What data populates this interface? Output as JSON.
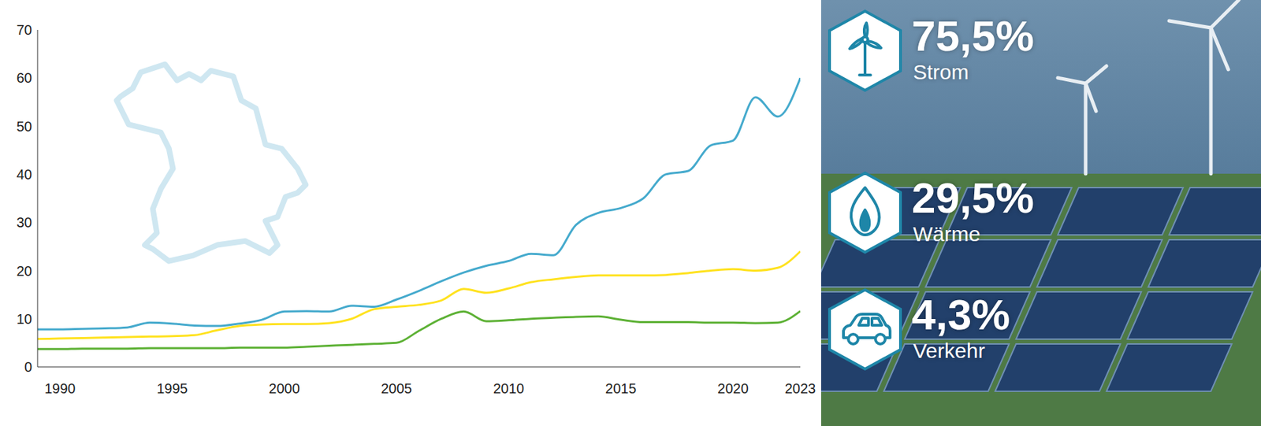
{
  "chart_data": {
    "type": "line",
    "x": [
      1989,
      1990,
      1991,
      1992,
      1993,
      1994,
      1995,
      1996,
      1997,
      1998,
      1999,
      2000,
      2001,
      2002,
      2003,
      2004,
      2005,
      2006,
      2007,
      2008,
      2009,
      2010,
      2011,
      2012,
      2013,
      2014,
      2015,
      2016,
      2017,
      2018,
      2019,
      2020,
      2021,
      2022,
      2023
    ],
    "series": [
      {
        "name": "Strom",
        "color": "#45aacd",
        "values": [
          7.8,
          7.8,
          7.9,
          8.0,
          8.2,
          9.2,
          9.0,
          8.6,
          8.5,
          9.0,
          9.8,
          11.5,
          11.6,
          11.5,
          12.7,
          12.5,
          14.0,
          15.8,
          17.8,
          19.6,
          21.0,
          22.0,
          23.5,
          23.2,
          29.5,
          32.0,
          33.0,
          35.0,
          40.0,
          40.7,
          46.0,
          47.0,
          56.0,
          52.0,
          60.0
        ]
      },
      {
        "name": "Wärme",
        "color": "#ffe21f",
        "values": [
          5.8,
          5.9,
          6.0,
          6.1,
          6.2,
          6.3,
          6.4,
          6.6,
          7.6,
          8.5,
          8.8,
          8.9,
          8.9,
          9.1,
          10.0,
          12.0,
          12.5,
          12.9,
          13.8,
          16.2,
          15.4,
          16.3,
          17.6,
          18.2,
          18.7,
          19.0,
          19.0,
          19.0,
          19.1,
          19.5,
          20.0,
          20.3,
          20.0,
          20.6,
          24.0
        ]
      },
      {
        "name": "Verkehr",
        "color": "#5db135",
        "values": [
          3.7,
          3.7,
          3.8,
          3.8,
          3.8,
          3.9,
          3.9,
          3.9,
          3.9,
          4.0,
          4.0,
          4.0,
          4.2,
          4.4,
          4.6,
          4.8,
          5.0,
          7.5,
          10.0,
          11.5,
          9.5,
          9.7,
          10.0,
          10.2,
          10.4,
          10.5,
          9.8,
          9.3,
          9.3,
          9.3,
          9.2,
          9.2,
          9.1,
          9.2,
          11.6
        ]
      }
    ],
    "xlim": [
      1989,
      2023
    ],
    "xticks": [
      1990,
      1995,
      2000,
      2005,
      2010,
      2015,
      2020,
      2023
    ],
    "ylim": [
      0,
      70
    ],
    "yticks": [
      0,
      10,
      20,
      30,
      40,
      50,
      60,
      70
    ],
    "grid": false,
    "annotations": [
      {
        "series": "Strom",
        "text": "75,5%"
      },
      {
        "series": "Wärme",
        "text": "29,5%"
      },
      {
        "series": "Verkehr",
        "text": "4,3%"
      }
    ]
  }
}
